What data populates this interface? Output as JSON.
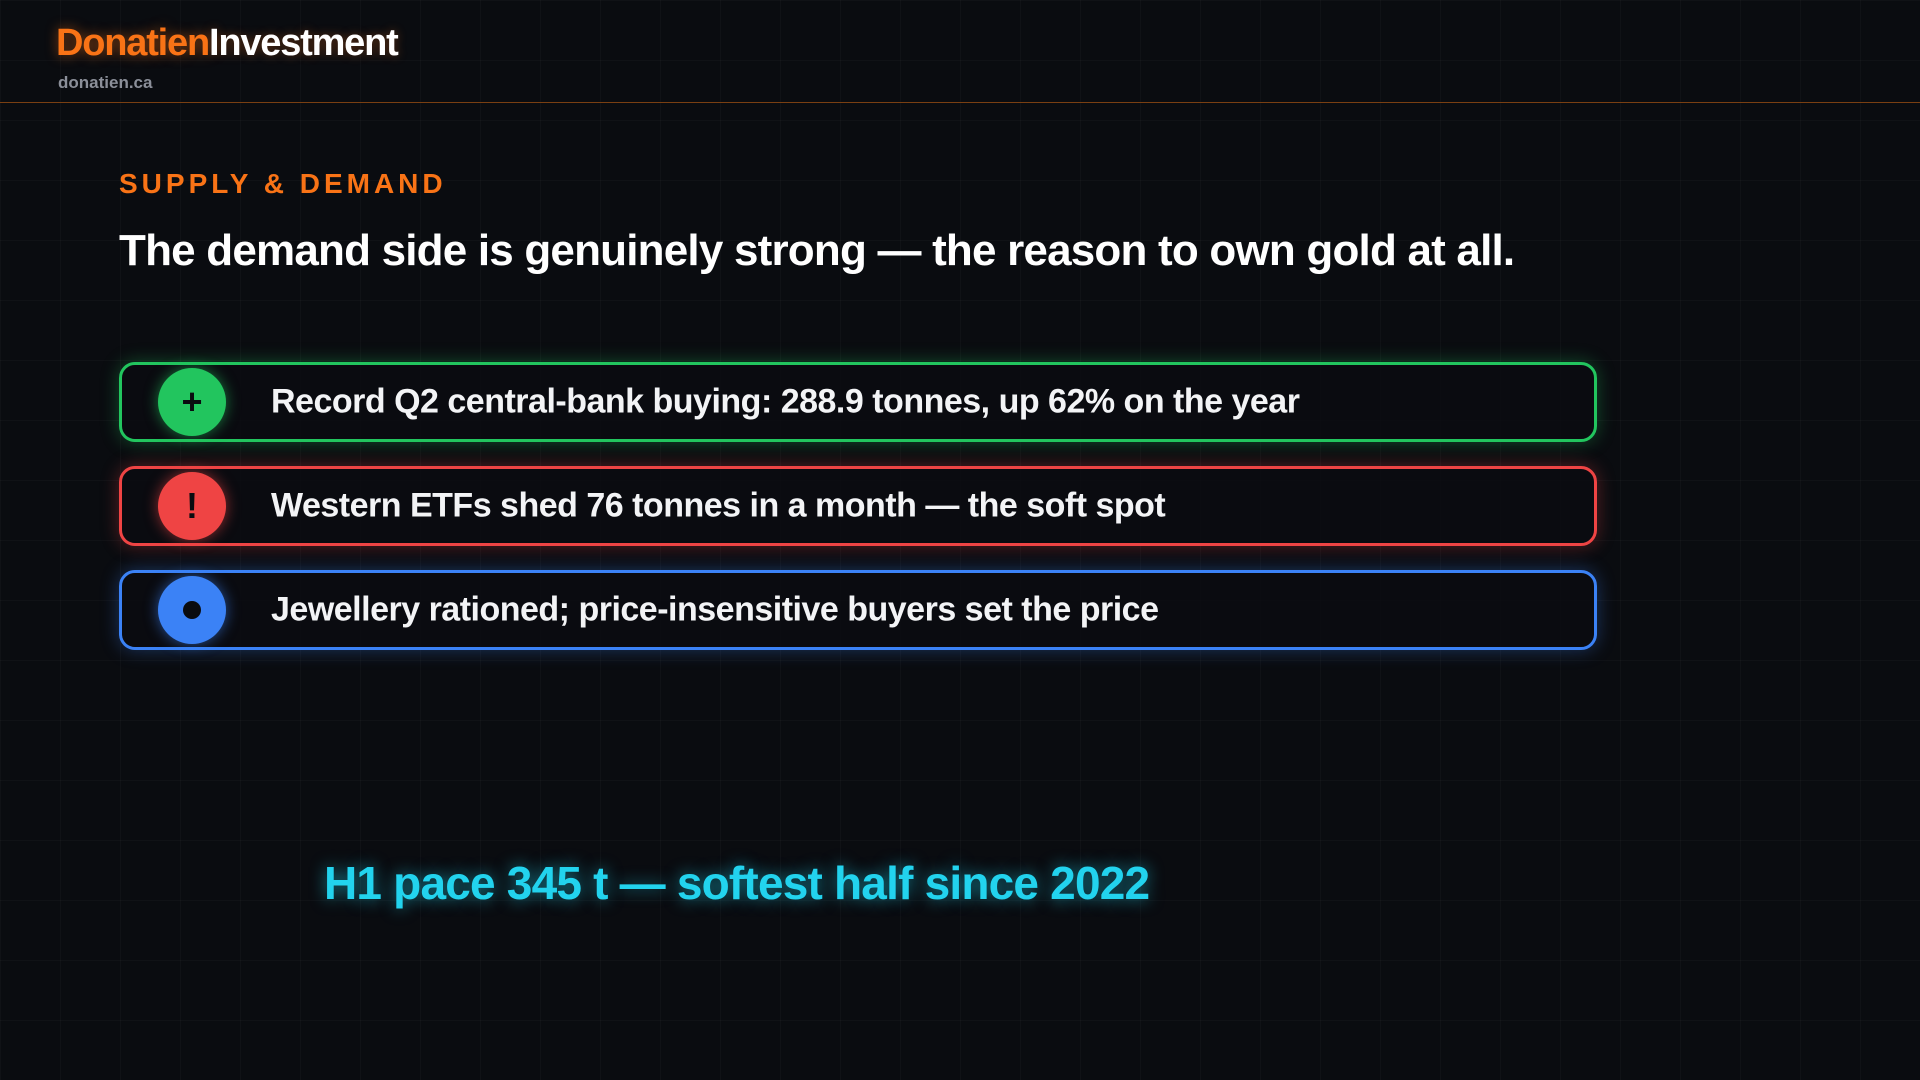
{
  "header": {
    "brand_primary": "Donatien",
    "brand_secondary": "Investment",
    "site": "donatien.ca"
  },
  "slide": {
    "eyebrow": "SUPPLY & DEMAND",
    "headline": "The demand side is genuinely strong — the reason to own gold at all.",
    "points": [
      {
        "icon": "plus-icon",
        "symbol": "+",
        "text": "Record Q2 central-bank buying: 288.9 tonnes, up 62% on the year",
        "color": "#22c55e"
      },
      {
        "icon": "exclamation-icon",
        "symbol": "!",
        "text": "Western ETFs shed 76 tonnes in a month — the soft spot",
        "color": "#ef4444"
      },
      {
        "icon": "dot-icon",
        "symbol": "",
        "text": "Jewellery rationed; price-insensitive buyers set the price",
        "color": "#3b82f6"
      }
    ],
    "callout": "H1 pace 345 t — softest half since 2022"
  },
  "colors": {
    "accent": "#f97316",
    "callout": "#22d3ee",
    "background": "#0a0c10"
  }
}
